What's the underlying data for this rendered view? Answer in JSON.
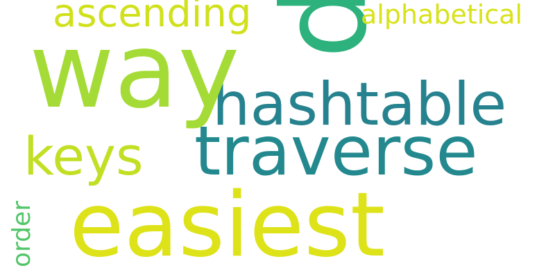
{
  "words": [
    {
      "text": "easiest",
      "color": "#dde318"
    },
    {
      "text": "traverse",
      "color": "#23898e"
    },
    {
      "text": "hashtable",
      "color": "#26828e"
    },
    {
      "text": "p",
      "color": "#2db27d"
    },
    {
      "text": "way",
      "color": "#a5db36"
    },
    {
      "text": "keys",
      "color": "#c2df23"
    },
    {
      "text": "ascending",
      "color": "#d0e11c"
    },
    {
      "text": "alphabetical",
      "color": "#d8e219"
    },
    {
      "text": "order",
      "color": "#52c569"
    }
  ]
}
